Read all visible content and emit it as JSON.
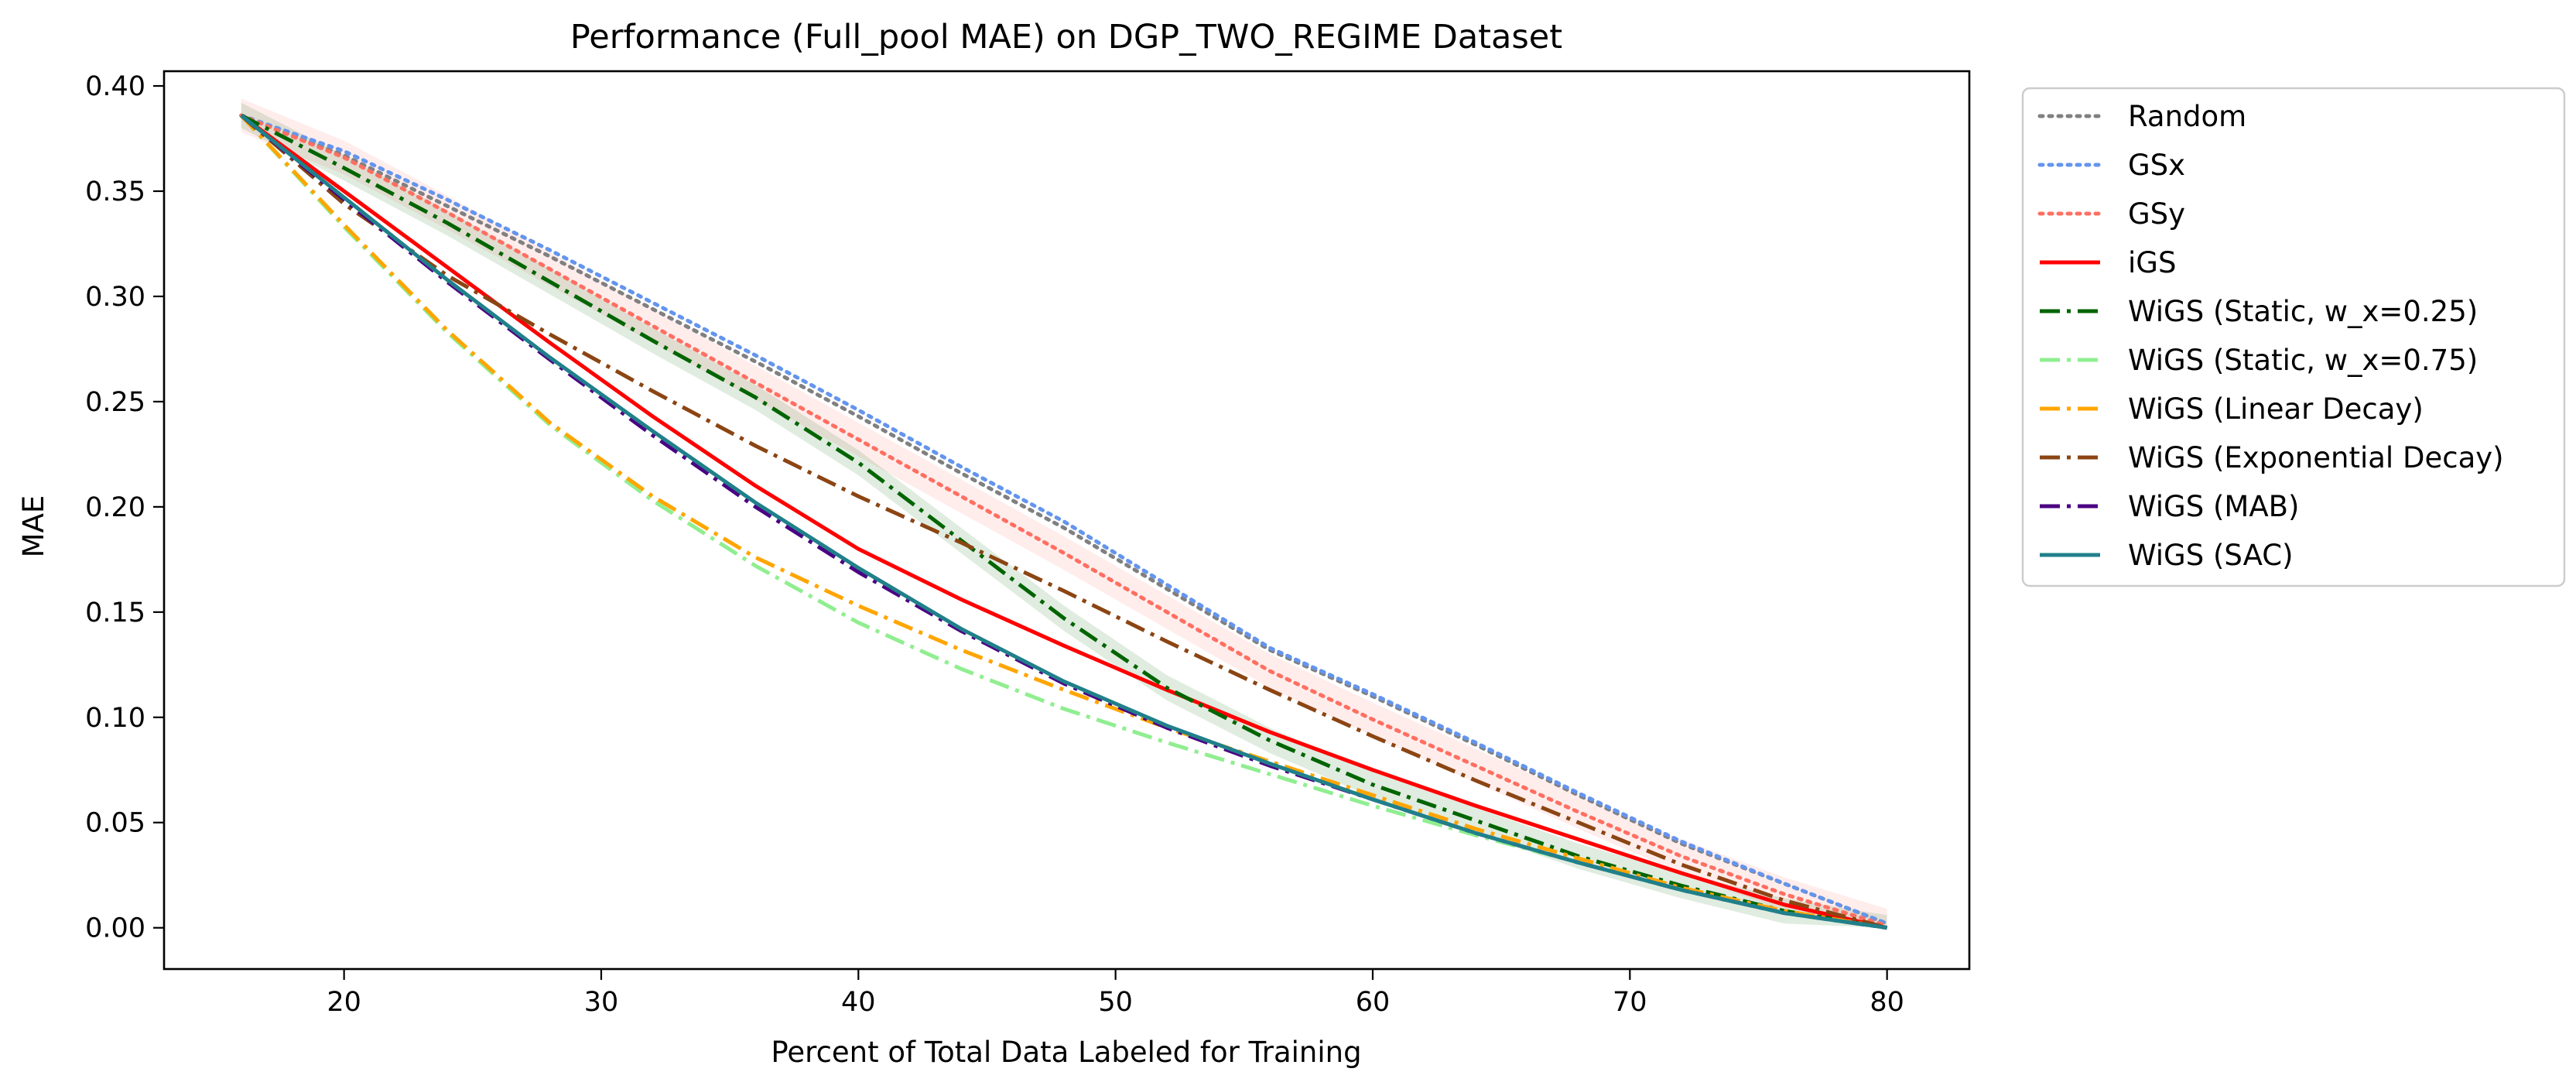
{
  "chart_data": {
    "type": "line",
    "title": "Performance (Full_pool MAE) on DGP_TWO_REGIME Dataset",
    "xlabel": "Percent of Total Data Labeled for Training",
    "ylabel": "MAE",
    "xlim": [
      13,
      83.2
    ],
    "ylim": [
      -0.0196,
      0.407
    ],
    "xticks": [
      20,
      30,
      40,
      50,
      60,
      70,
      80
    ],
    "xtick_labels": [
      "20",
      "30",
      "40",
      "50",
      "60",
      "70",
      "80"
    ],
    "yticks": [
      0.0,
      0.05,
      0.1,
      0.15,
      0.2,
      0.25,
      0.3,
      0.35,
      0.4
    ],
    "ytick_labels": [
      "0.00",
      "0.05",
      "0.10",
      "0.15",
      "0.20",
      "0.25",
      "0.30",
      "0.35",
      "0.40"
    ],
    "grid": false,
    "legend_position": "outside-right-top",
    "x": [
      16,
      20,
      24,
      28,
      32,
      36,
      40,
      44,
      48,
      52,
      56,
      60,
      64,
      68,
      72,
      76,
      80
    ],
    "series": [
      {
        "name": "Random",
        "color": "#808080",
        "style": "dotted",
        "values": [
          0.386,
          0.367,
          0.343,
          0.319,
          0.294,
          0.269,
          0.243,
          0.216,
          0.19,
          0.161,
          0.132,
          0.11,
          0.087,
          0.063,
          0.04,
          0.021,
          0.002
        ]
      },
      {
        "name": "GSx",
        "color": "#6495ED",
        "style": "dotted",
        "values": [
          0.386,
          0.369,
          0.346,
          0.322,
          0.297,
          0.272,
          0.246,
          0.219,
          0.193,
          0.163,
          0.133,
          0.111,
          0.088,
          0.064,
          0.041,
          0.021,
          0.002
        ]
      },
      {
        "name": "GSy",
        "color": "#FF6F61",
        "style": "dotted",
        "band": 0.008,
        "values": [
          0.386,
          0.366,
          0.34,
          0.313,
          0.286,
          0.259,
          0.232,
          0.205,
          0.178,
          0.15,
          0.122,
          0.099,
          0.077,
          0.055,
          0.034,
          0.016,
          0.001
        ]
      },
      {
        "name": "iGS",
        "color": "#FF0000",
        "style": "solid",
        "values": [
          0.386,
          0.35,
          0.314,
          0.278,
          0.243,
          0.21,
          0.18,
          0.156,
          0.134,
          0.113,
          0.093,
          0.075,
          0.058,
          0.042,
          0.026,
          0.011,
          0.0
        ]
      },
      {
        "name": "WiGS (Static, w_x=0.25)",
        "color": "#006400",
        "style": "dashdot",
        "band": 0.006,
        "values": [
          0.386,
          0.361,
          0.335,
          0.307,
          0.279,
          0.252,
          0.221,
          0.184,
          0.147,
          0.114,
          0.089,
          0.068,
          0.051,
          0.034,
          0.02,
          0.008,
          0.0
        ]
      },
      {
        "name": "WiGS (Static, w_x=0.75)",
        "color": "#90EE90",
        "style": "dashdot",
        "values": [
          0.386,
          0.333,
          0.283,
          0.239,
          0.203,
          0.172,
          0.145,
          0.123,
          0.104,
          0.088,
          0.073,
          0.058,
          0.044,
          0.031,
          0.018,
          0.007,
          0.0
        ]
      },
      {
        "name": "WiGS (Linear Decay)",
        "color": "#FFA500",
        "style": "dashdot",
        "values": [
          0.386,
          0.334,
          0.284,
          0.24,
          0.205,
          0.176,
          0.153,
          0.132,
          0.113,
          0.095,
          0.079,
          0.063,
          0.047,
          0.033,
          0.019,
          0.008,
          0.0
        ]
      },
      {
        "name": "WiGS (Exponential Decay)",
        "color": "#8B4513",
        "style": "dashdot",
        "values": [
          0.386,
          0.344,
          0.31,
          0.282,
          0.255,
          0.229,
          0.205,
          0.183,
          0.16,
          0.136,
          0.113,
          0.091,
          0.07,
          0.05,
          0.03,
          0.013,
          0.0
        ]
      },
      {
        "name": "WiGS (MAB)",
        "color": "#4B0082",
        "style": "dashdot",
        "values": [
          0.386,
          0.346,
          0.307,
          0.27,
          0.234,
          0.2,
          0.169,
          0.141,
          0.116,
          0.095,
          0.077,
          0.061,
          0.045,
          0.031,
          0.018,
          0.007,
          0.0
        ]
      },
      {
        "name": "WiGS (SAC)",
        "color": "#20808A",
        "style": "solid",
        "values": [
          0.386,
          0.347,
          0.308,
          0.271,
          0.236,
          0.202,
          0.171,
          0.142,
          0.117,
          0.096,
          0.078,
          0.061,
          0.045,
          0.031,
          0.018,
          0.007,
          0.0
        ]
      }
    ]
  }
}
